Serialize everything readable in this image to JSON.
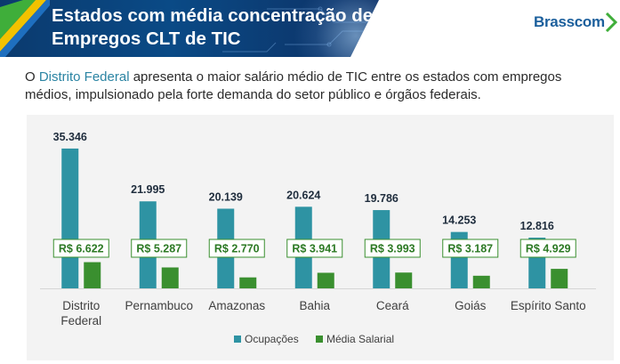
{
  "header": {
    "title_line1": "Estados com média concentração de",
    "title_line2": "Empregos CLT de TIC",
    "logo_text": "Brasscom",
    "colors": {
      "banner": "#0b3a6e",
      "accent_green": "#3fae3a",
      "accent_yellow": "#f2c200",
      "logo": "#1b5f9c"
    }
  },
  "subtitle": {
    "prefix": "O ",
    "highlight": "Distrito Federal",
    "rest": " apresenta o maior salário médio de TIC entre os estados com empregos médios, impulsionado pela forte demanda do setor público e órgãos federais."
  },
  "chart_data": {
    "type": "bar",
    "categories": [
      "Distrito Federal",
      "Pernambuco",
      "Amazonas",
      "Bahia",
      "Ceará",
      "Goiás",
      "Espírito Santo"
    ],
    "category_lines": [
      [
        "Distrito",
        "Federal"
      ],
      [
        "Pernambuco"
      ],
      [
        "Amazonas"
      ],
      [
        "Bahia"
      ],
      [
        "Ceará"
      ],
      [
        "Goiás"
      ],
      [
        "Espírito Santo"
      ]
    ],
    "series": [
      {
        "name": "Ocupações",
        "color": "#2e93a3",
        "values": [
          35346,
          21995,
          20139,
          20624,
          19786,
          14253,
          12816
        ],
        "labels": [
          "35.346",
          "21.995",
          "20.139",
          "20.624",
          "19.786",
          "14.253",
          "12.816"
        ]
      },
      {
        "name": "Média Salarial",
        "color": "#3a8f2f",
        "values": [
          6622,
          5287,
          2770,
          3941,
          3993,
          3187,
          4929
        ],
        "labels": [
          "R$ 6.622",
          "R$ 5.287",
          "R$ 2.770",
          "R$ 3.941",
          "R$ 3.993",
          "R$ 3.187",
          "R$ 4.929"
        ]
      }
    ],
    "ylim": [
      0,
      36000
    ],
    "grid": false,
    "legend_position": "bottom"
  }
}
